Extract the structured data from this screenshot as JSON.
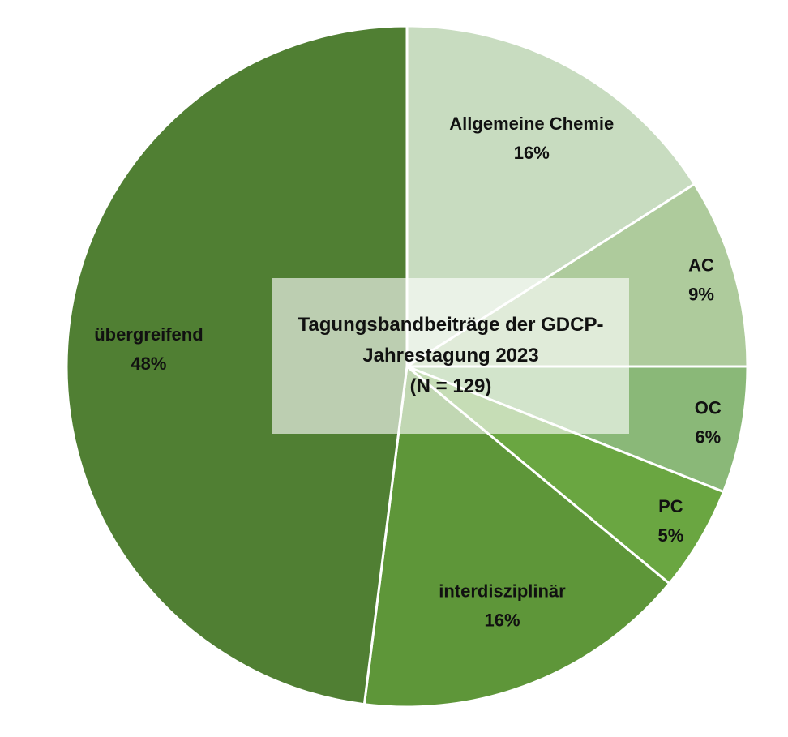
{
  "chart_data": {
    "type": "pie",
    "title": "Tagungsbandbeiträge der GDCP-Jahrestagung 2023",
    "subtitle": "(N = 129)",
    "categories": [
      "Allgemeine Chemie",
      "AC",
      "OC",
      "PC",
      "interdisziplinär",
      "übergreifend"
    ],
    "values": [
      16,
      9,
      6,
      5,
      16,
      48
    ],
    "value_labels": [
      "16%",
      "9%",
      "6%",
      "5%",
      "16%",
      "48%"
    ],
    "colors": [
      "#c8dcc0",
      "#aecb9c",
      "#8ab878",
      "#6aa641",
      "#5e9639",
      "#507f33"
    ]
  }
}
